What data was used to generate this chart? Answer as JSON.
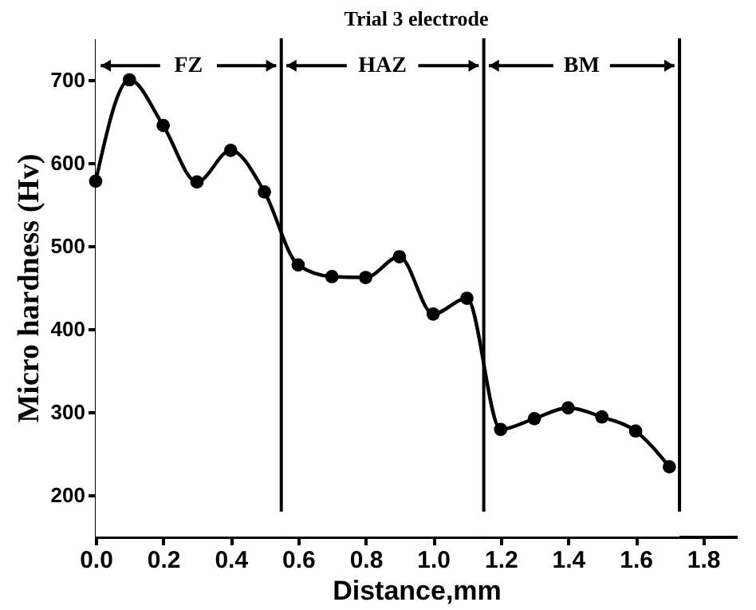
{
  "chart_data": {
    "type": "line",
    "title": "Trial 3 electrode",
    "xlabel": "Distance,mm",
    "ylabel": "Micro hardness (Hv)",
    "x": [
      0.0,
      0.1,
      0.2,
      0.3,
      0.4,
      0.5,
      0.6,
      0.7,
      0.8,
      0.9,
      1.0,
      1.1,
      1.2,
      1.3,
      1.4,
      1.5,
      1.6,
      1.7
    ],
    "series": [
      {
        "color": "#000000",
        "values": [
          578,
          700,
          645,
          577,
          615,
          565,
          477,
          463,
          462,
          487,
          418,
          437,
          279,
          292,
          305,
          294,
          277,
          234
        ]
      }
    ],
    "xlim": [
      0,
      1.9
    ],
    "xticks": [
      {
        "value": 0,
        "label": "0.0"
      },
      0.2,
      0.4,
      0.6,
      0.8,
      {
        "value": 1,
        "label": "1.0"
      },
      1.2,
      1.4,
      1.6,
      1.8
    ],
    "ylim": [
      150,
      750
    ],
    "yticks": [
      200,
      300,
      400,
      500,
      600,
      700
    ],
    "ref_lines": [
      {
        "axis": "x",
        "value": 0.55,
        "color": "#000000"
      },
      {
        "axis": "x",
        "value": 1.15,
        "color": "#000000"
      },
      {
        "axis": "x",
        "value": 1.73,
        "color": "#000000"
      }
    ],
    "bands": [
      {
        "axis": "x",
        "from": 0,
        "to": 0.55,
        "label": "FZ",
        "color": "#ffffff"
      },
      {
        "axis": "x",
        "from": 0.55,
        "to": 1.15,
        "label": "HAZ",
        "color": "#ffffff"
      },
      {
        "axis": "x",
        "from": 1.15,
        "to": 1.73,
        "label": "BM",
        "color": "#ffffff"
      }
    ],
    "marker": "circle",
    "line_style": "solid",
    "grid": false
  }
}
